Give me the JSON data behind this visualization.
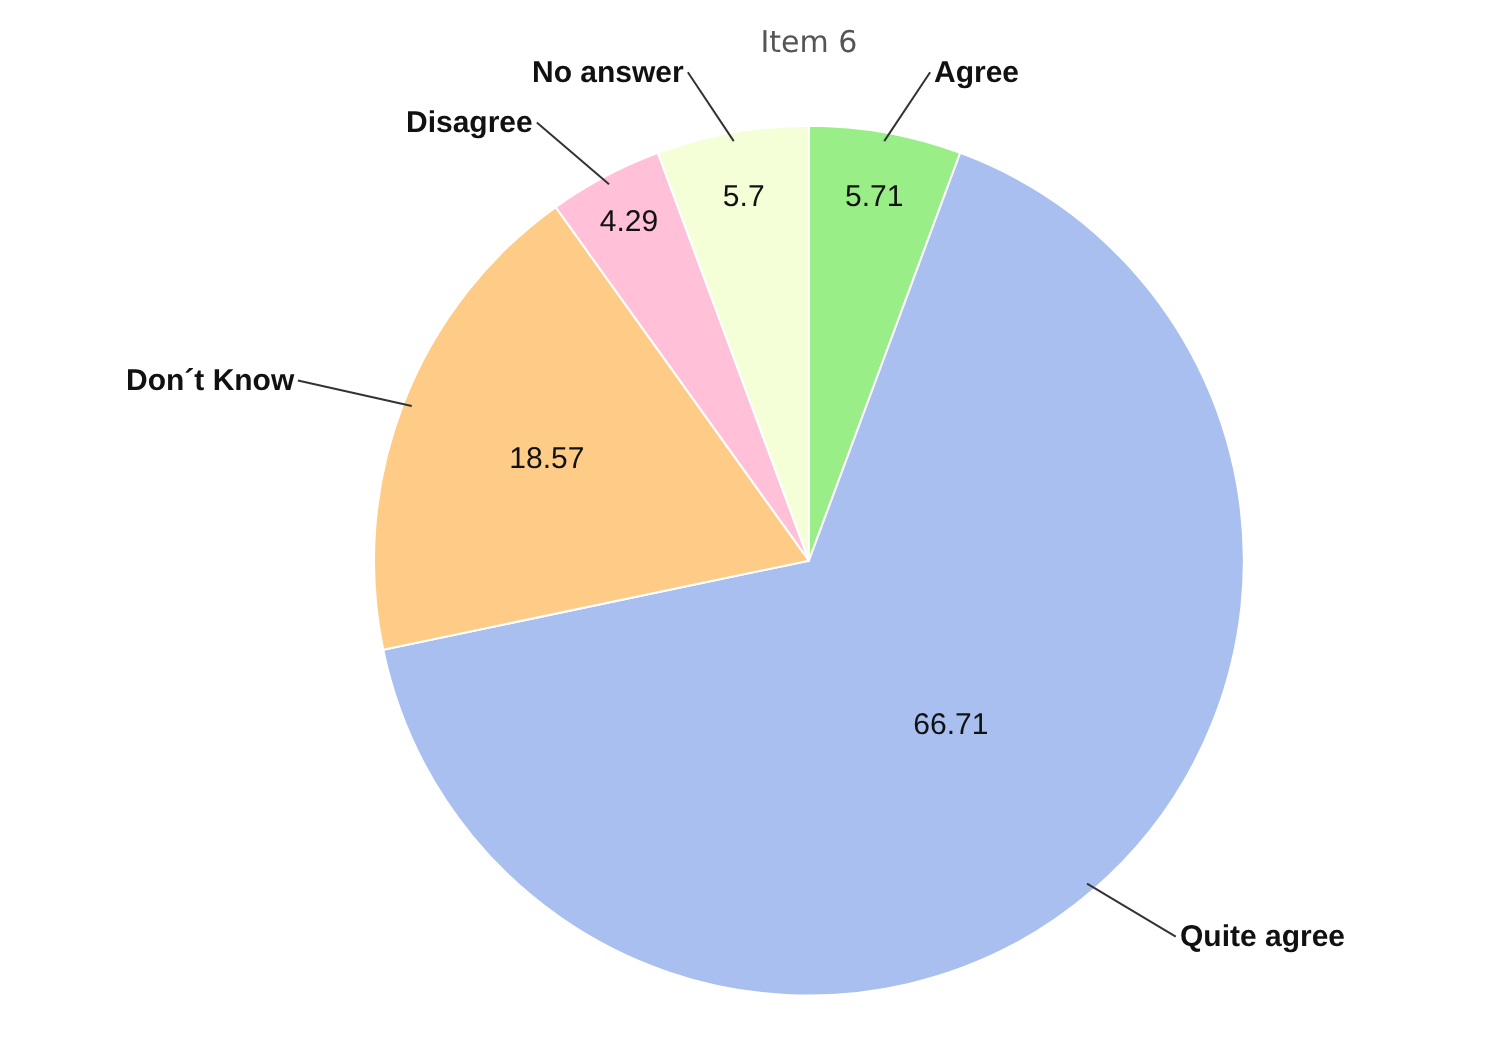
{
  "chart_data": {
    "type": "pie",
    "title": "Item 6",
    "categories": [
      "Agree",
      "Quite agree",
      "Don´t Know",
      "Disagree",
      "No answer"
    ],
    "values": [
      5.71,
      66.71,
      18.57,
      4.29,
      5.7
    ],
    "colors": [
      "#99ee88",
      "#a9bff0",
      "#ffcc88",
      "#ffc0d8",
      "#f4ffd8"
    ],
    "data_labels": true,
    "legend": false
  }
}
